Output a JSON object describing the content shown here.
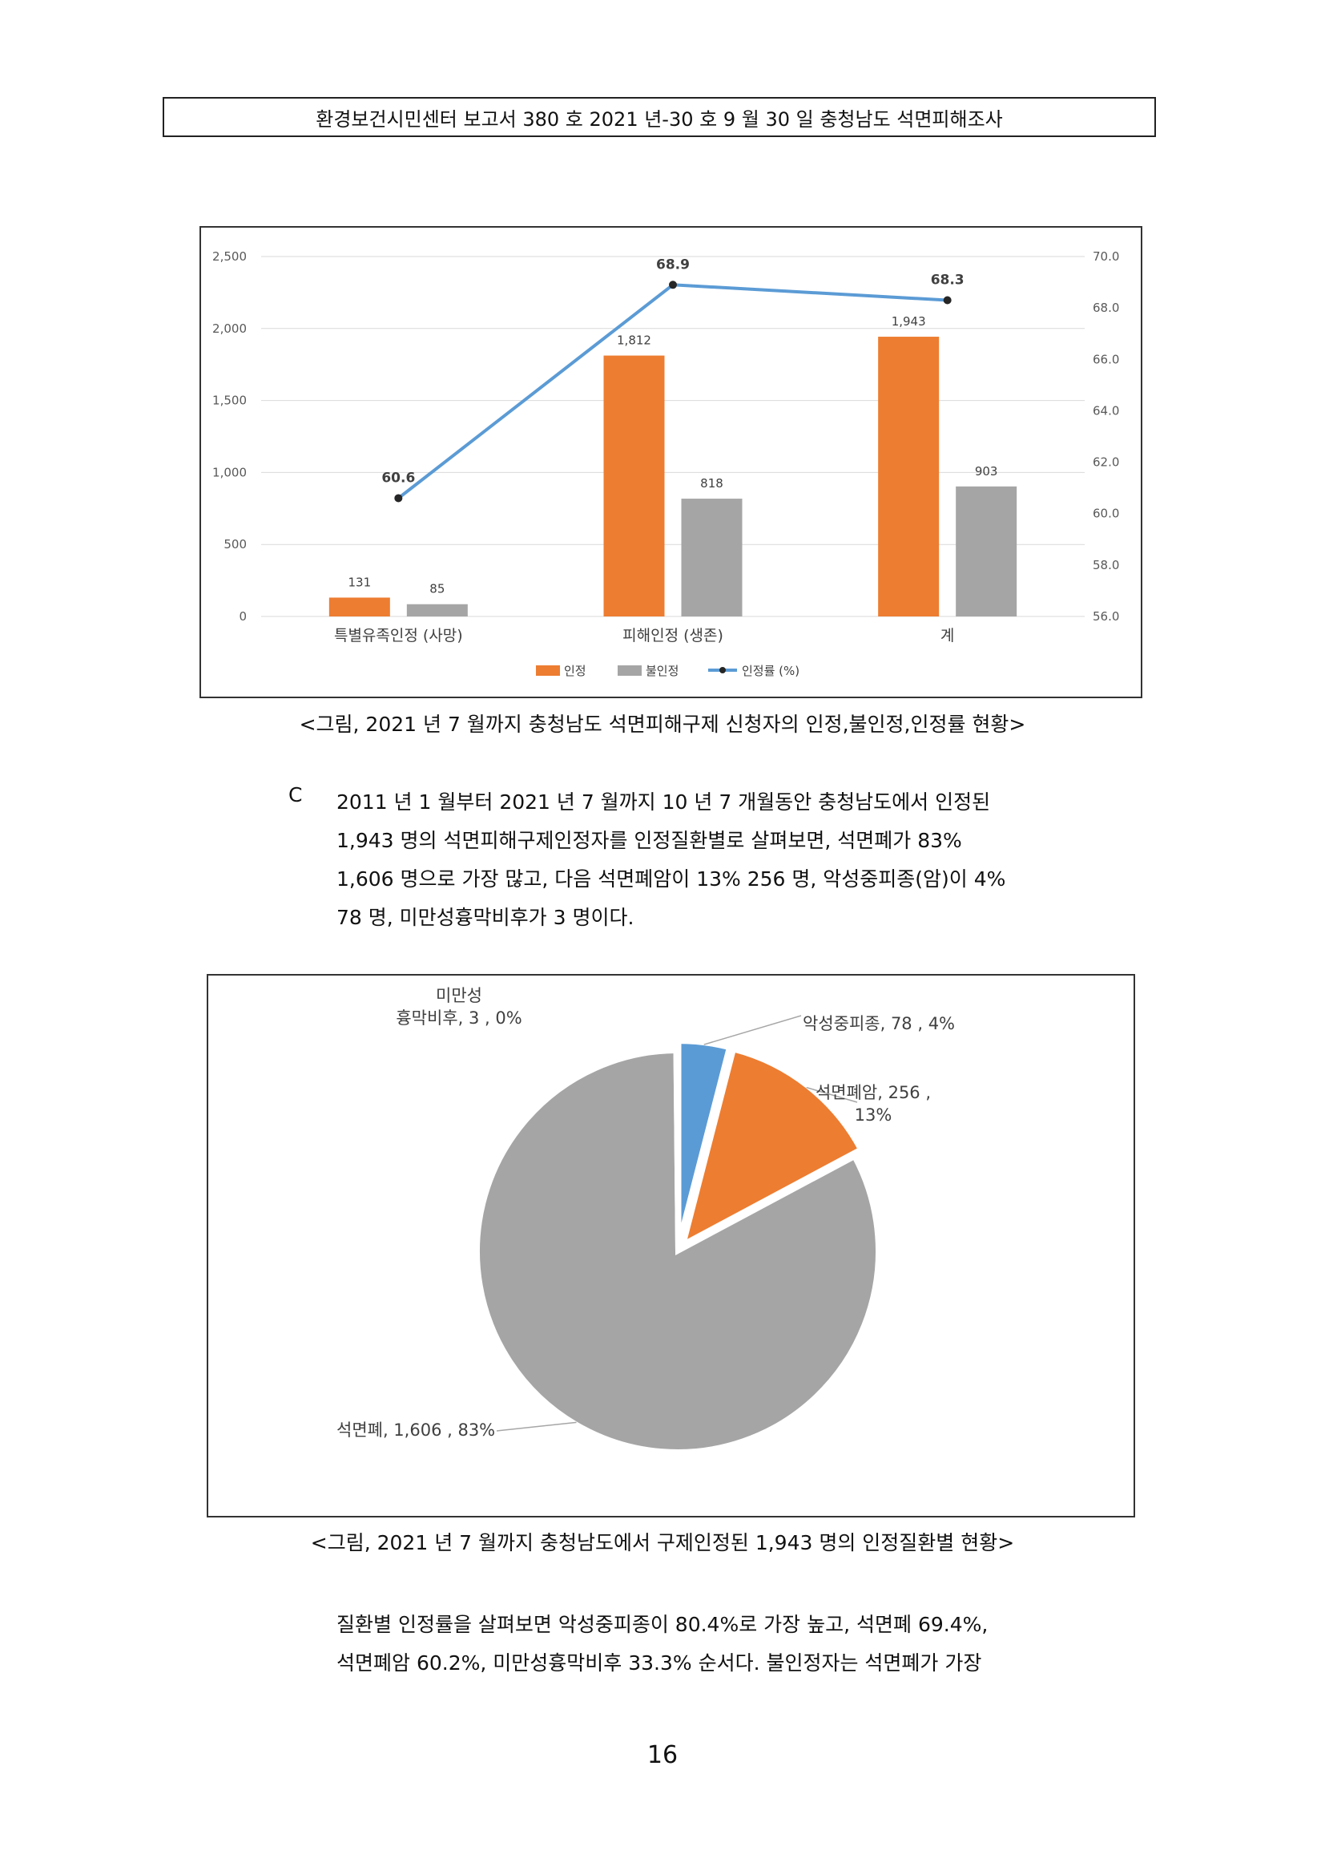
{
  "header": {
    "title": "환경보건시민센터 보고서 380 호 2021 년-30 호 9 월 30 일 충청남도 석면피해조사"
  },
  "colors": {
    "orange": "#ED7D31",
    "gray": "#A5A5A5",
    "blue": "#5B9BD5",
    "line": "#5B9BD5"
  },
  "chart_data": [
    {
      "type": "bar",
      "categories": [
        "특별유족인정 (사망)",
        "피해인정 (생존)",
        "계"
      ],
      "series": [
        {
          "name": "인정",
          "values": [
            131,
            1812,
            1943
          ],
          "labels": [
            "131",
            "1,812",
            "1,943"
          ]
        },
        {
          "name": "불인정",
          "values": [
            85,
            818,
            903
          ],
          "labels": [
            "85",
            "818",
            "903"
          ]
        },
        {
          "name": "인정률 (%)",
          "type": "line",
          "axis": "right",
          "values": [
            60.6,
            68.9,
            68.3
          ],
          "labels": [
            "60.6",
            "68.9",
            "68.3"
          ]
        }
      ],
      "ylim": [
        0,
        2500
      ],
      "yticks": [
        0,
        500,
        1000,
        1500,
        2000,
        2500
      ],
      "ytick_labels": [
        "0",
        "500",
        "1,000",
        "1,500",
        "2,000",
        "2,500"
      ],
      "y2lim": [
        56,
        70
      ],
      "y2ticks": [
        56,
        58,
        60,
        62,
        64,
        66,
        68,
        70
      ],
      "y2tick_labels": [
        "56.0",
        "58.0",
        "60.0",
        "62.0",
        "64.0",
        "66.0",
        "68.0",
        "70.0"
      ],
      "grid": true,
      "legend": "bottom",
      "legend_labels": [
        "인정",
        "불인정",
        "인정률 (%)"
      ]
    },
    {
      "type": "pie",
      "slices": [
        {
          "label_lines": [
            "악성중피종, 78 , 4%"
          ],
          "value": 78
        },
        {
          "label_lines": [
            "석면폐암, 256 ,",
            "13%"
          ],
          "value": 256
        },
        {
          "label_lines": [
            "석면폐, 1,606 , 83%"
          ],
          "value": 1606
        },
        {
          "label_lines": [
            "미만성",
            "흉막비후, 3 , 0%"
          ],
          "value": 3
        }
      ]
    }
  ],
  "captions": {
    "fig1": "<그림, 2021 년 7 월까지 충청남도 석면피해구제 신청자의 인정,불인정,인정률 현황>",
    "fig2": "<그림, 2021 년 7 월까지 충청남도에서 구제인정된 1,943 명의 인정질환별 현황>"
  },
  "para1": {
    "bullet": "C",
    "lines": [
      "2011 년 1 월부터 2021 년 7 월까지 10 년 7 개월동안 충청남도에서 인정된",
      "1,943 명의 석면피해구제인정자를 인정질환별로 살펴보면, 석면폐가 83%",
      "1,606 명으로 가장 많고, 다음 석면폐암이 13% 256 명, 악성중피종(암)이 4%",
      "78 명, 미만성흉막비후가 3 명이다."
    ]
  },
  "para2": {
    "lines": [
      "질환별 인정률을 살펴보면 악성중피종이 80.4%로 가장 높고, 석면폐 69.4%,",
      "석면폐암 60.2%, 미만성흉막비후 33.3% 순서다. 불인정자는 석면폐가 가장"
    ]
  },
  "page_number": "16"
}
